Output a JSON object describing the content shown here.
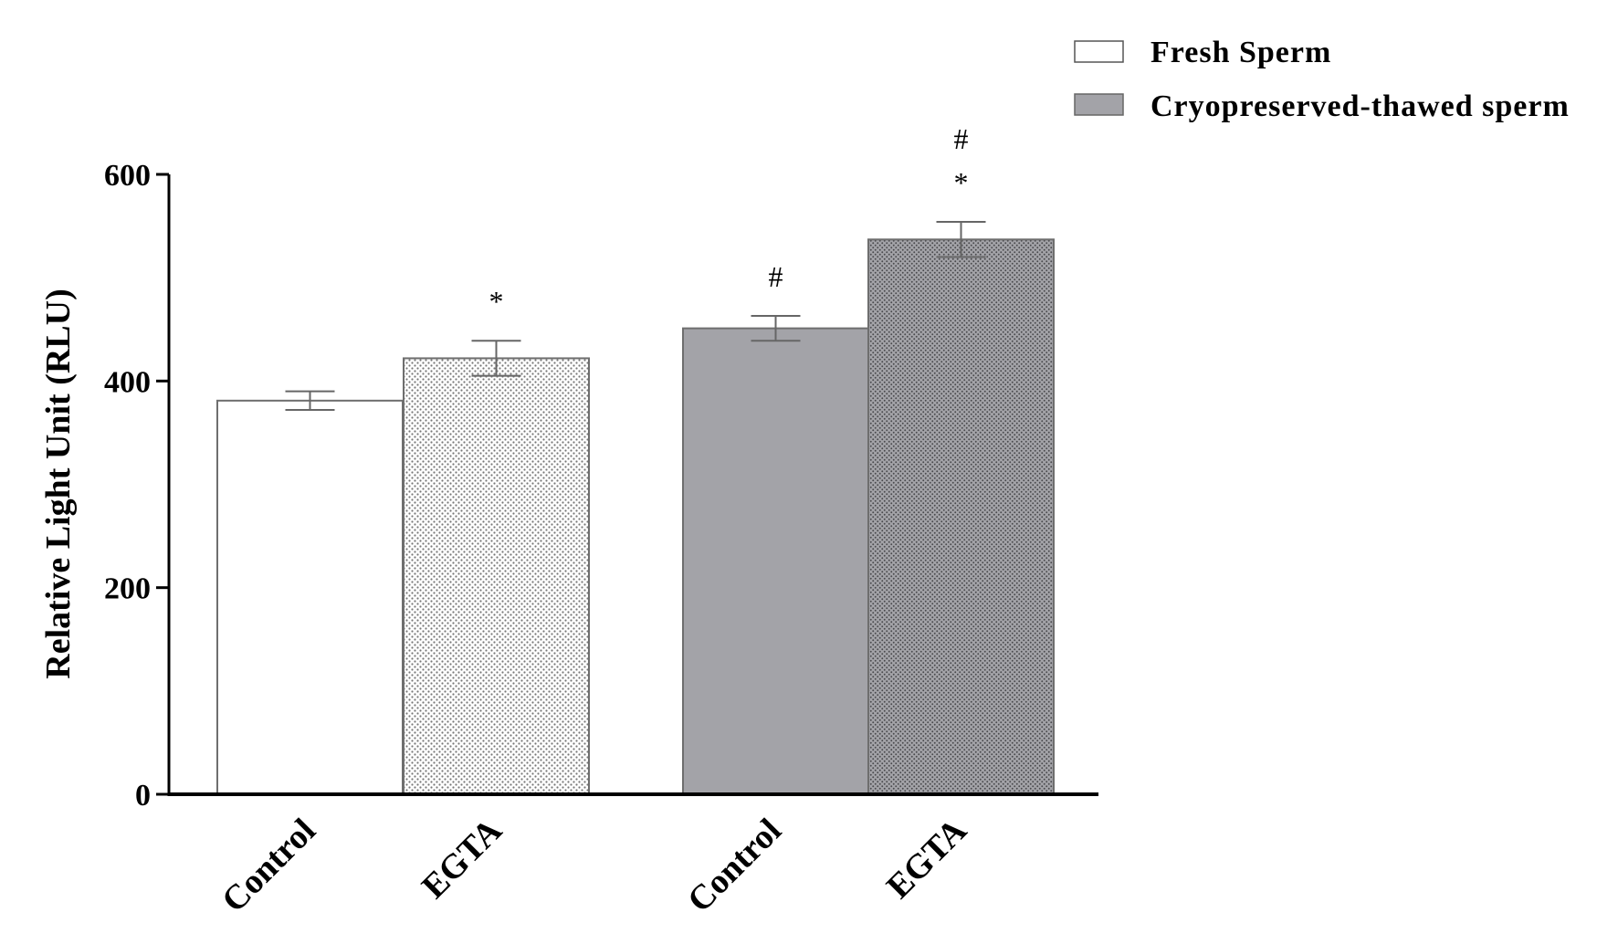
{
  "chart_data": {
    "type": "bar",
    "title": "",
    "xlabel": "",
    "ylabel": "Relative Light Unit (RLU)",
    "ylim": [
      0,
      600
    ],
    "yticks": [
      0,
      200,
      400,
      600
    ],
    "grid": false,
    "legend_position": "top-right",
    "legend": [
      {
        "label": "Fresh Sperm",
        "fill": "#ffffff"
      },
      {
        "label": "Cryopreserved-thawed sperm",
        "fill": "#a3a3a8"
      }
    ],
    "bars": [
      {
        "category": "Control",
        "group": "Fresh Sperm",
        "value": 381,
        "error": 9,
        "fill": "#ffffff",
        "pattern": "none",
        "annotations": []
      },
      {
        "category": "EGTA",
        "group": "Fresh Sperm",
        "value": 422,
        "error": 17,
        "fill": "#ffffff",
        "pattern": "light-dots",
        "annotations": [
          "*"
        ]
      },
      {
        "category": "Control",
        "group": "Cryopreserved-thawed sperm",
        "value": 451,
        "error": 12,
        "fill": "#a3a3a8",
        "pattern": "none",
        "annotations": [
          "#"
        ]
      },
      {
        "category": "EGTA",
        "group": "Cryopreserved-thawed sperm",
        "value": 537,
        "error": 17,
        "fill": "#a3a3a8",
        "pattern": "dark-dots",
        "annotations": [
          "*",
          "#"
        ]
      }
    ],
    "colors": {
      "fresh": "#ffffff",
      "cryo": "#a3a3a8",
      "outline": "#6e6e6e",
      "axis": "#000000"
    }
  }
}
